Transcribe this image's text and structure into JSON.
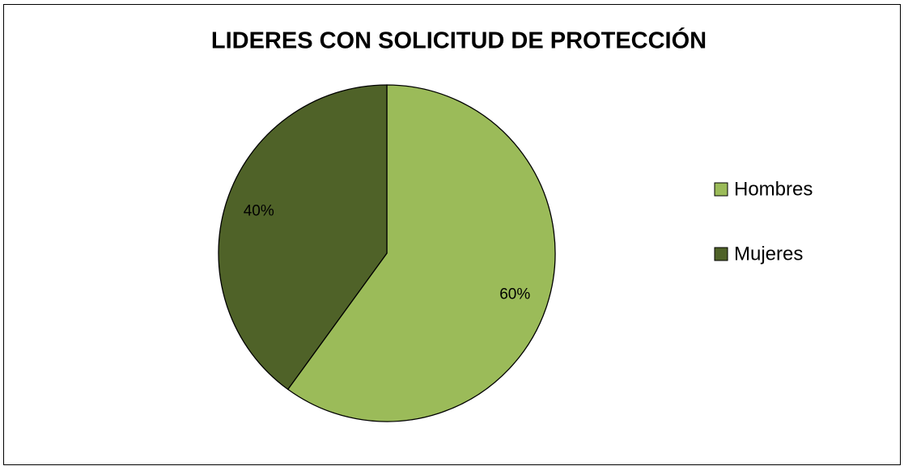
{
  "chart_data": {
    "type": "pie",
    "title": "LIDERES CON SOLICITUD DE PROTECCIÓN",
    "categories": [
      "Hombres",
      "Mujeres"
    ],
    "values": [
      60,
      40
    ],
    "value_labels": [
      "60%",
      "40%"
    ],
    "colors": [
      "#9bbb59",
      "#4f6228"
    ],
    "legend": "right"
  }
}
